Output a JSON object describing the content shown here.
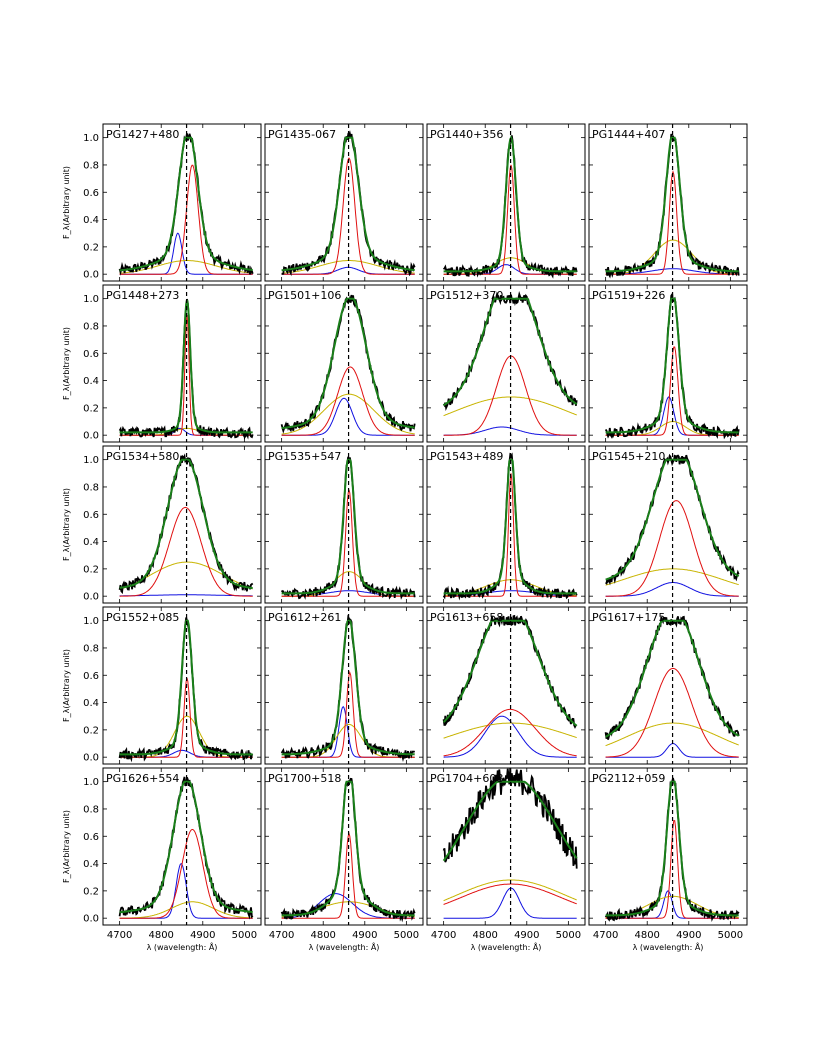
{
  "chart_data": {
    "type": "line",
    "layout": "grid 5 rows x 4 columns, shared axes",
    "xlabel": "λ (wavelength: Å)",
    "ylabel": "F_λ(Arbitrary unit)",
    "xlim": [
      4660,
      5040
    ],
    "ylim": [
      -0.05,
      1.1
    ],
    "xticks": [
      4700,
      4800,
      4900,
      5000
    ],
    "yticks": [
      0.0,
      0.2,
      0.4,
      0.6,
      0.8,
      1.0
    ],
    "ytick_labels": [
      "0.0",
      "0.2",
      "0.4",
      "0.6",
      "0.8",
      "1.0"
    ],
    "reference_line_x": 4861,
    "series_colors": {
      "observed": "#000000",
      "total_fit": "#1a7f1a",
      "narrow_component": "#e01010",
      "broad_component": "#c8b400",
      "blue_component": "#1010e0"
    },
    "panels": [
      {
        "name": "PG1427+480",
        "obs": {
          "center": 4865,
          "width": 22,
          "wing": 0.12,
          "skew": 0.0
        },
        "red": {
          "c": 4875,
          "w": 14,
          "a": 0.8
        },
        "yellow": {
          "c": 4862,
          "w": 70,
          "a": 0.1
        },
        "blue": {
          "c": 4840,
          "w": 10,
          "a": 0.3
        }
      },
      {
        "name": "PG1435-067",
        "obs": {
          "center": 4862,
          "width": 22,
          "wing": 0.12
        },
        "red": {
          "c": 4862,
          "w": 14,
          "a": 0.85
        },
        "yellow": {
          "c": 4862,
          "w": 70,
          "a": 0.1
        },
        "blue": {
          "c": 4860,
          "w": 25,
          "a": 0.05
        }
      },
      {
        "name": "PG1440+356",
        "obs": {
          "center": 4862,
          "width": 12,
          "wing": 0.06
        },
        "red": {
          "c": 4862,
          "w": 8,
          "a": 0.8
        },
        "yellow": {
          "c": 4862,
          "w": 40,
          "a": 0.12
        },
        "blue": {
          "c": 4850,
          "w": 20,
          "a": 0.07
        }
      },
      {
        "name": "PG1444+407",
        "obs": {
          "center": 4862,
          "width": 16,
          "wing": 0.1
        },
        "red": {
          "c": 4862,
          "w": 9,
          "a": 0.75
        },
        "yellow": {
          "c": 4862,
          "w": 45,
          "a": 0.25
        },
        "blue": {
          "c": 4862,
          "w": 50,
          "a": 0.04
        }
      },
      {
        "name": "PG1448+273",
        "obs": {
          "center": 4862,
          "width": 8,
          "wing": 0.05
        },
        "red": {
          "c": 4862,
          "w": 5,
          "a": 0.88
        },
        "yellow": {
          "c": 4862,
          "w": 30,
          "a": 0.05
        },
        "blue": {
          "c": 4845,
          "w": 12,
          "a": 0.05
        }
      },
      {
        "name": "PG1501+106",
        "obs": {
          "center": 4865,
          "width": 38,
          "wing": 0.08
        },
        "red": {
          "c": 4865,
          "w": 30,
          "a": 0.5
        },
        "yellow": {
          "c": 4862,
          "w": 60,
          "a": 0.3
        },
        "blue": {
          "c": 4850,
          "w": 20,
          "a": 0.27
        }
      },
      {
        "name": "PG1512+370",
        "obs": {
          "center": 4862,
          "width": 60,
          "wing": 0.25
        },
        "red": {
          "c": 4862,
          "w": 35,
          "a": 0.58
        },
        "yellow": {
          "c": 4862,
          "w": 140,
          "a": 0.28
        },
        "blue": {
          "c": 4840,
          "w": 40,
          "a": 0.06
        }
      },
      {
        "name": "PG1519+226",
        "obs": {
          "center": 4862,
          "width": 14,
          "wing": 0.1
        },
        "red": {
          "c": 4865,
          "w": 9,
          "a": 0.65
        },
        "yellow": {
          "c": 4862,
          "w": 30,
          "a": 0.1
        },
        "blue": {
          "c": 4852,
          "w": 12,
          "a": 0.28
        }
      },
      {
        "name": "PG1534+580",
        "obs": {
          "center": 4858,
          "width": 42,
          "wing": 0.08
        },
        "red": {
          "c": 4858,
          "w": 38,
          "a": 0.65
        },
        "yellow": {
          "c": 4862,
          "w": 90,
          "a": 0.25
        },
        "blue": {
          "c": 4862,
          "w": 90,
          "a": 0.01
        }
      },
      {
        "name": "PG1535+547",
        "obs": {
          "center": 4862,
          "width": 12,
          "wing": 0.1
        },
        "red": {
          "c": 4862,
          "w": 8,
          "a": 0.78
        },
        "yellow": {
          "c": 4862,
          "w": 35,
          "a": 0.18
        },
        "blue": {
          "c": 4862,
          "w": 50,
          "a": 0.04
        }
      },
      {
        "name": "PG1543+489",
        "obs": {
          "center": 4862,
          "width": 10,
          "wing": 0.12
        },
        "red": {
          "c": 4862,
          "w": 6,
          "a": 0.9
        },
        "yellow": {
          "c": 4862,
          "w": 60,
          "a": 0.12
        },
        "blue": {
          "c": 4862,
          "w": 60,
          "a": 0.04
        }
      },
      {
        "name": "PG1545+210",
        "obs": {
          "center": 4870,
          "width": 55,
          "wing": 0.15
        },
        "red": {
          "c": 4870,
          "w": 40,
          "a": 0.7
        },
        "yellow": {
          "c": 4862,
          "w": 120,
          "a": 0.2
        },
        "blue": {
          "c": 4862,
          "w": 40,
          "a": 0.1
        }
      },
      {
        "name": "PG1552+085",
        "obs": {
          "center": 4862,
          "width": 12,
          "wing": 0.08
        },
        "red": {
          "c": 4862,
          "w": 7,
          "a": 0.58
        },
        "yellow": {
          "c": 4862,
          "w": 30,
          "a": 0.3
        },
        "blue": {
          "c": 4850,
          "w": 20,
          "a": 0.05
        }
      },
      {
        "name": "PG1612+261",
        "obs": {
          "center": 4862,
          "width": 16,
          "wing": 0.08
        },
        "red": {
          "c": 4864,
          "w": 8,
          "a": 0.62
        },
        "yellow": {
          "c": 4862,
          "w": 30,
          "a": 0.24
        },
        "blue": {
          "c": 4848,
          "w": 10,
          "a": 0.37
        }
      },
      {
        "name": "PG1613+658",
        "obs": {
          "center": 4855,
          "width": 70,
          "wing": 0.2
        },
        "red": {
          "c": 4860,
          "w": 60,
          "a": 0.35
        },
        "yellow": {
          "c": 4862,
          "w": 150,
          "a": 0.25
        },
        "blue": {
          "c": 4840,
          "w": 40,
          "a": 0.3
        }
      },
      {
        "name": "PG1617+175",
        "obs": {
          "center": 4862,
          "width": 60,
          "wing": 0.15
        },
        "red": {
          "c": 4862,
          "w": 45,
          "a": 0.65
        },
        "yellow": {
          "c": 4862,
          "w": 110,
          "a": 0.25
        },
        "blue": {
          "c": 4862,
          "w": 15,
          "a": 0.1
        }
      },
      {
        "name": "PG1626+554",
        "obs": {
          "center": 4862,
          "width": 32,
          "wing": 0.08
        },
        "red": {
          "c": 4875,
          "w": 25,
          "a": 0.65
        },
        "yellow": {
          "c": 4875,
          "w": 50,
          "a": 0.12
        },
        "blue": {
          "c": 4848,
          "w": 12,
          "a": 0.4
        }
      },
      {
        "name": "PG1700+518",
        "obs": {
          "center": 4862,
          "width": 14,
          "wing": 0.18
        },
        "red": {
          "c": 4862,
          "w": 8,
          "a": 0.62
        },
        "yellow": {
          "c": 4862,
          "w": 70,
          "a": 0.12
        },
        "blue": {
          "c": 4830,
          "w": 40,
          "a": 0.18
        }
      },
      {
        "name": "PG1704+608",
        "obs": {
          "center": 4862,
          "width": 110,
          "wing": 0.1
        },
        "red": {
          "c": 4862,
          "w": 120,
          "a": 0.25
        },
        "yellow": {
          "c": 4862,
          "w": 130,
          "a": 0.28
        },
        "blue": {
          "c": 4862,
          "w": 20,
          "a": 0.22
        }
      },
      {
        "name": "PG2112+059",
        "obs": {
          "center": 4862,
          "width": 14,
          "wing": 0.1
        },
        "red": {
          "c": 4865,
          "w": 8,
          "a": 0.72
        },
        "yellow": {
          "c": 4862,
          "w": 60,
          "a": 0.16
        },
        "blue": {
          "c": 4850,
          "w": 10,
          "a": 0.2
        }
      }
    ]
  }
}
